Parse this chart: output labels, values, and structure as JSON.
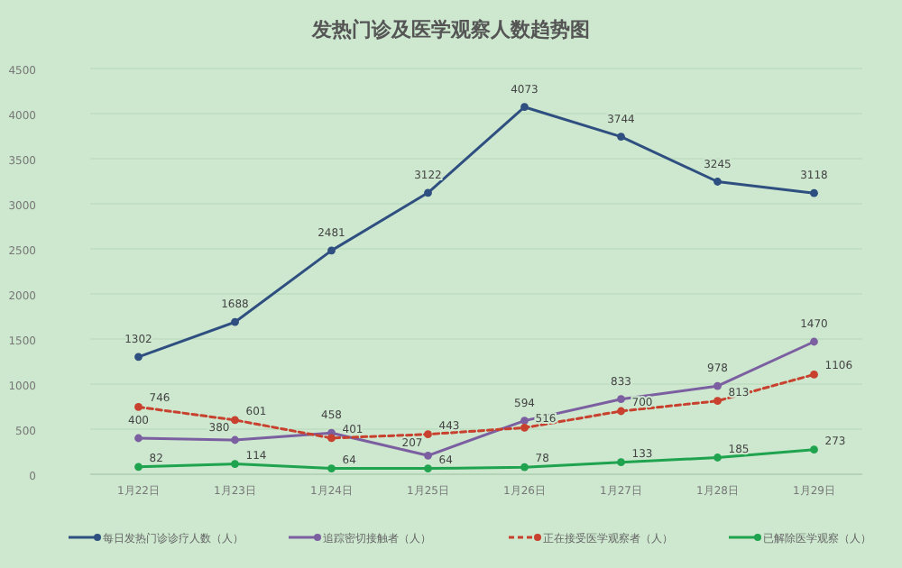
{
  "chart_data": {
    "type": "line",
    "title": "发热门诊及医学观察人数趋势图",
    "categories": [
      "1月22日",
      "1月23日",
      "1月24日",
      "1月25日",
      "1月26日",
      "1月27日",
      "1月28日",
      "1月29日"
    ],
    "series": [
      {
        "name": "每日发热门诊诊疗人数（人）",
        "color": "#2f4f80",
        "values": [
          1302,
          1688,
          2481,
          3122,
          4073,
          3744,
          3245,
          3118
        ]
      },
      {
        "name": "追踪密切接触者（人）",
        "color": "#7b5fa0",
        "values": [
          400,
          380,
          458,
          207,
          594,
          833,
          978,
          1470
        ]
      },
      {
        "name": "正在接受医学观察者（人）",
        "color": "#c8402e",
        "line_style": "dashed",
        "values": [
          746,
          601,
          401,
          443,
          516,
          700,
          813,
          1106
        ]
      },
      {
        "name": "已解除医学观察（人）",
        "color": "#1fa34f",
        "values": [
          82,
          114,
          64,
          64,
          78,
          133,
          185,
          273
        ]
      }
    ],
    "ylim": [
      0,
      4500
    ],
    "yticks": [
      0,
      500,
      1000,
      1500,
      2000,
      2500,
      3000,
      3500,
      4000,
      4500
    ],
    "grid": "y",
    "legend": "bottom",
    "marker": "circle",
    "data_labels": true
  }
}
